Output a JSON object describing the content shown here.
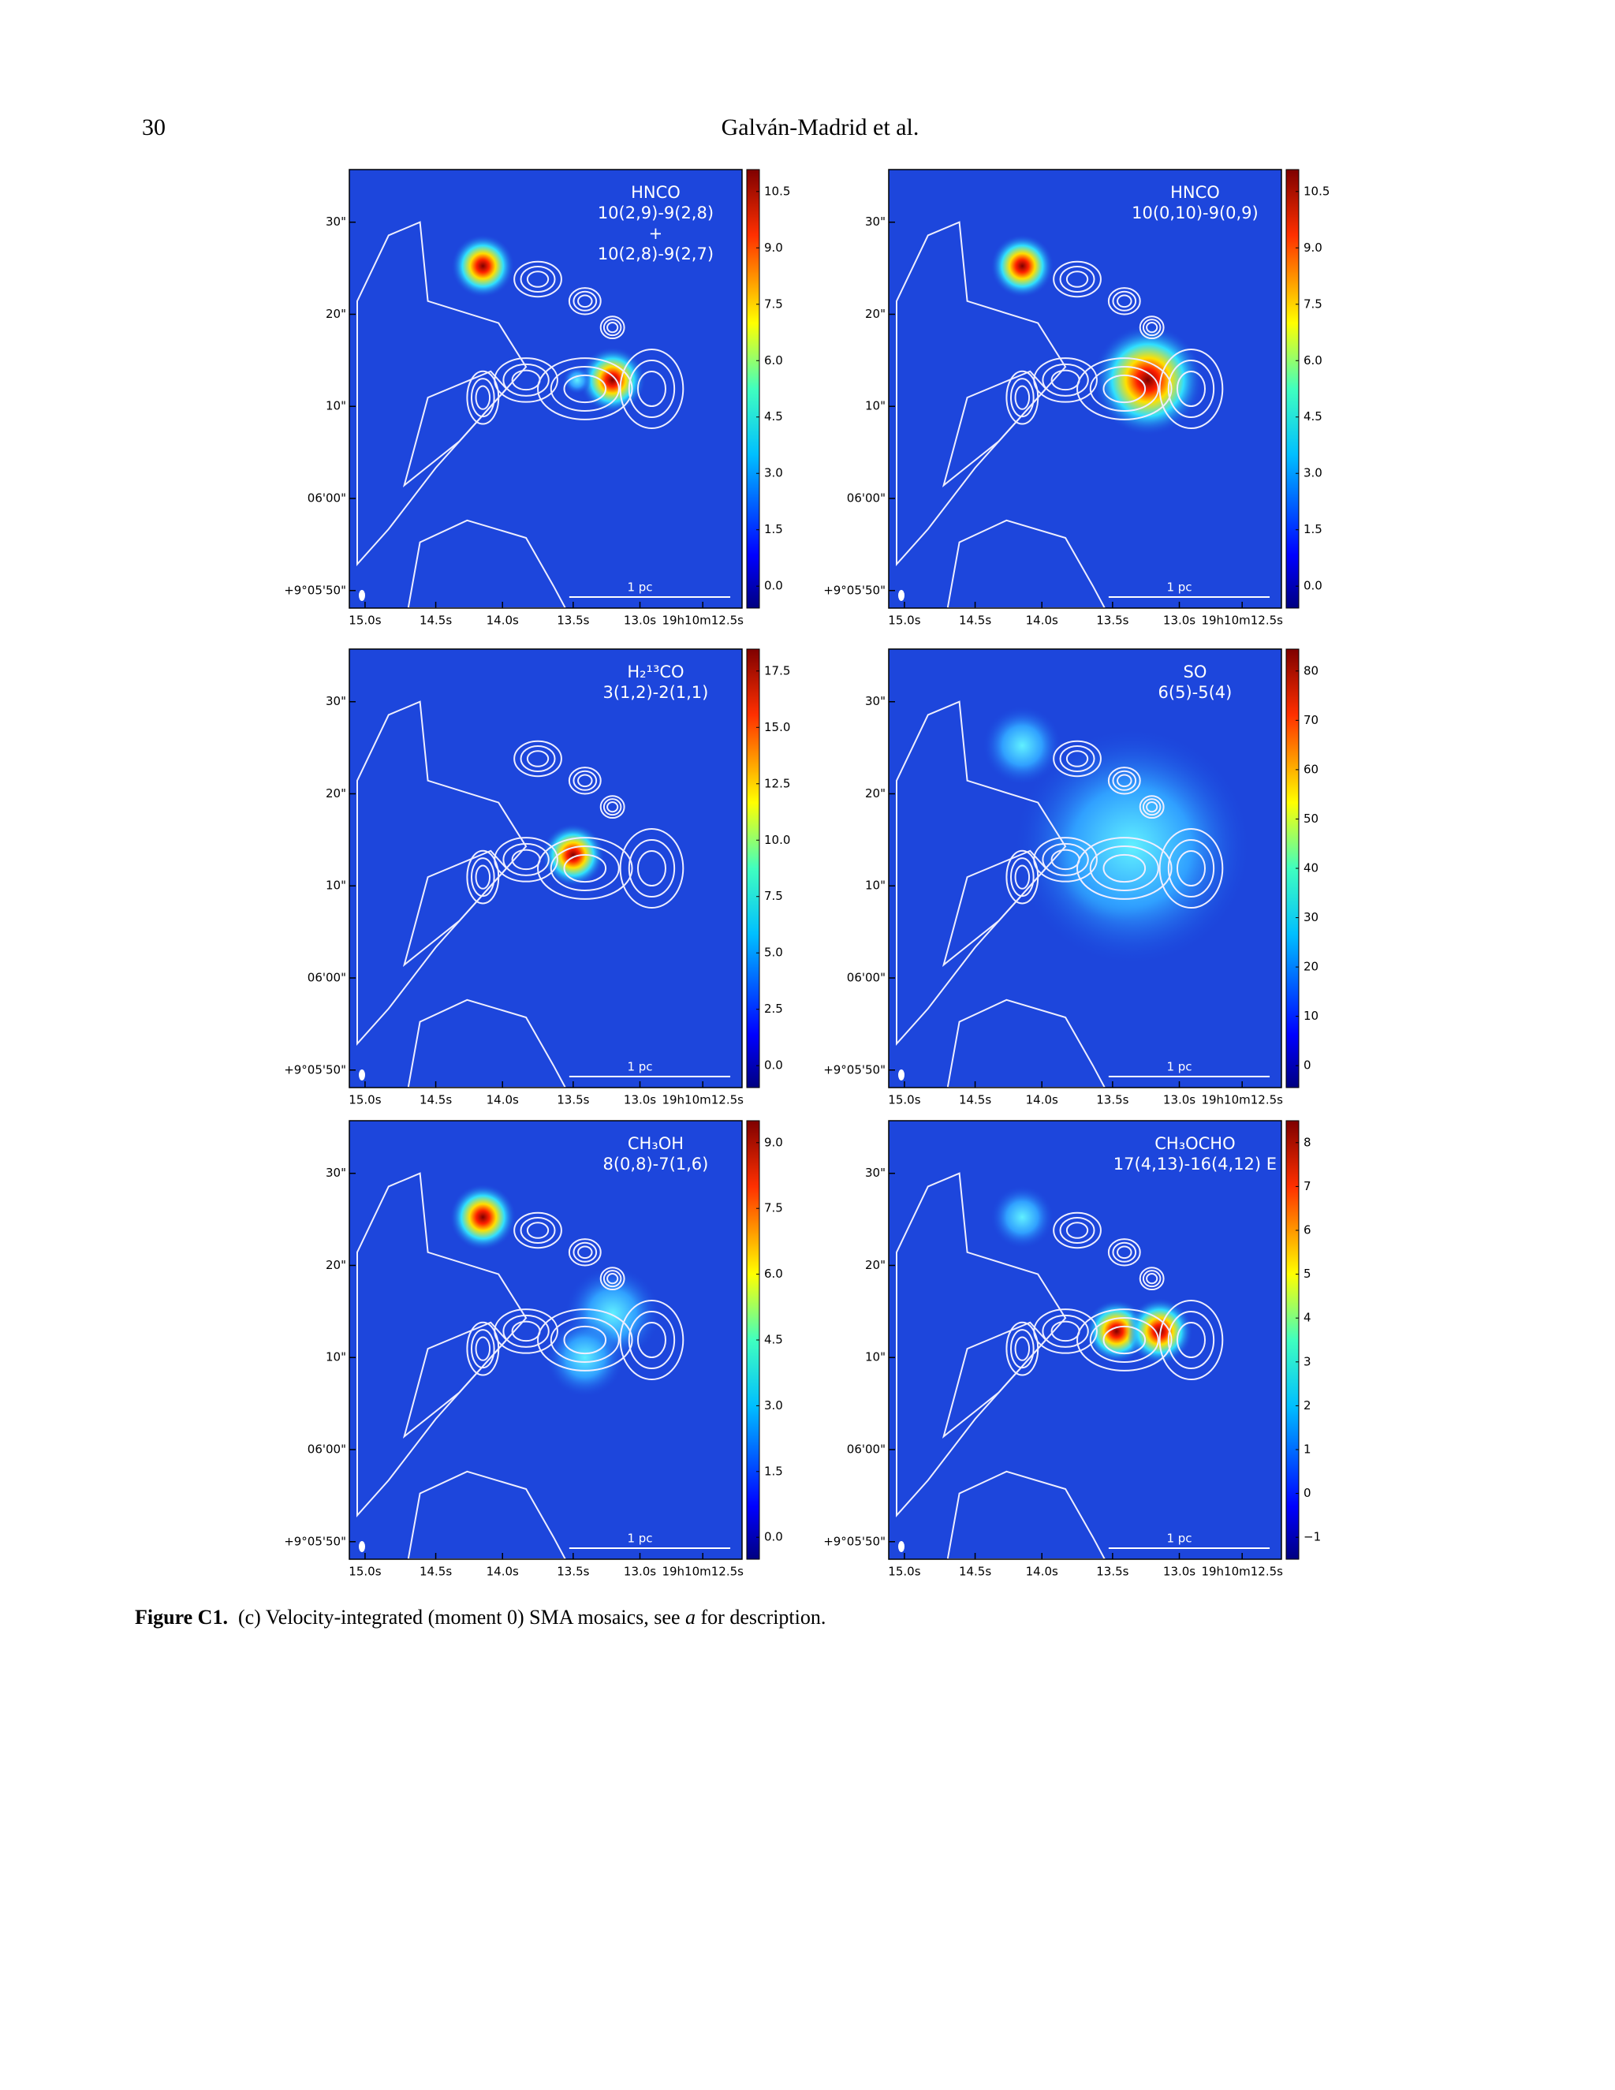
{
  "header": {
    "page_number": "30",
    "running_title": "Galván-Madrid et al."
  },
  "figure": {
    "dec_ticks": [
      "30\"",
      "20\"",
      "10\"",
      "06'00\"",
      "+9°05'50\""
    ],
    "ra_ticks": [
      "15.0s",
      "14.5s",
      "14.0s",
      "13.5s",
      "13.0s",
      "19h10m12.5s"
    ],
    "scale_bar": "1 pc",
    "panels": [
      {
        "label": [
          "HNCO",
          "10(2,9)-9(2,8)",
          "+",
          "10(2,8)-9(2,7)"
        ],
        "colorbar_ticks": [
          "10.5",
          "9.0",
          "7.5",
          "6.0",
          "4.5",
          "3.0",
          "1.5",
          "0.0"
        ]
      },
      {
        "label": [
          "HNCO",
          "10(0,10)-9(0,9)"
        ],
        "colorbar_ticks": [
          "10.5",
          "9.0",
          "7.5",
          "6.0",
          "4.5",
          "3.0",
          "1.5",
          "0.0"
        ]
      },
      {
        "label": [
          "H₂¹³CO",
          "3(1,2)-2(1,1)"
        ],
        "colorbar_ticks": [
          "17.5",
          "15.0",
          "12.5",
          "10.0",
          "7.5",
          "5.0",
          "2.5",
          "0.0"
        ]
      },
      {
        "label": [
          "SO",
          "6(5)-5(4)"
        ],
        "colorbar_ticks": [
          "80",
          "70",
          "60",
          "50",
          "40",
          "30",
          "20",
          "10",
          "0"
        ]
      },
      {
        "label": [
          "CH₃OH",
          "8(0,8)-7(1,6)"
        ],
        "colorbar_ticks": [
          "9.0",
          "7.5",
          "6.0",
          "4.5",
          "3.0",
          "1.5",
          "0.0"
        ]
      },
      {
        "label": [
          "CH₃OCHO",
          "17(4,13)-16(4,12) E"
        ],
        "colorbar_ticks": [
          "8",
          "7",
          "6",
          "5",
          "4",
          "3",
          "2",
          "1",
          "0",
          "−1"
        ]
      }
    ]
  },
  "caption": {
    "label": "Figure C1.",
    "text_before": "(c) Velocity-integrated (moment 0) SMA mosaics, see ",
    "emphasis": "a",
    "text_after": " for description."
  }
}
